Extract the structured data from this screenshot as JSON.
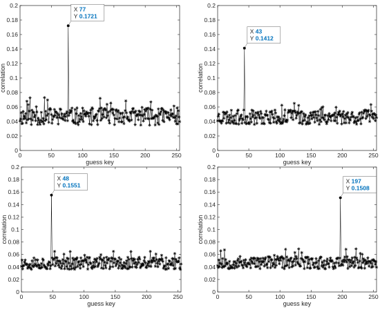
{
  "chart_data": [
    {
      "type": "line",
      "xlabel": "guess key",
      "ylabel": "correlation",
      "xlim": [
        0,
        255
      ],
      "ylim": [
        0,
        0.2
      ],
      "xticks": [
        0,
        50,
        100,
        150,
        200,
        250
      ],
      "yticks": [
        0,
        0.02,
        0.04,
        0.06,
        0.08,
        0.1,
        0.12,
        0.14,
        0.16,
        0.18,
        0.2
      ],
      "series": [
        {
          "marker": "asterisk",
          "color": "#000000",
          "noise": {
            "baseline": 0.047,
            "amplitude": 0.012,
            "min": 0.034,
            "max": 0.081,
            "seed": 11
          },
          "peak": {
            "x": 77,
            "y": 0.1721
          }
        }
      ],
      "datatip": {
        "x_label": "X",
        "y_label": "Y",
        "x_value": "77",
        "y_value": "0.1721",
        "anchor": "right"
      }
    },
    {
      "type": "line",
      "xlabel": "guess key",
      "ylabel": "correlation",
      "xlim": [
        0,
        255
      ],
      "ylim": [
        0,
        0.2
      ],
      "xticks": [
        0,
        50,
        100,
        150,
        200,
        250
      ],
      "yticks": [
        0,
        0.02,
        0.04,
        0.06,
        0.08,
        0.1,
        0.12,
        0.14,
        0.16,
        0.18,
        0.2
      ],
      "series": [
        {
          "marker": "asterisk",
          "color": "#000000",
          "noise": {
            "baseline": 0.046,
            "amplitude": 0.01,
            "min": 0.03,
            "max": 0.07,
            "seed": 23
          },
          "peak": {
            "x": 43,
            "y": 0.1412
          }
        }
      ],
      "datatip": {
        "x_label": "X",
        "y_label": "Y",
        "x_value": "43",
        "y_value": "0.1412",
        "anchor": "right"
      }
    },
    {
      "type": "line",
      "xlabel": "guess key",
      "ylabel": "correlation",
      "xlim": [
        0,
        255
      ],
      "ylim": [
        0,
        0.2
      ],
      "xticks": [
        0,
        50,
        100,
        150,
        200,
        250
      ],
      "yticks": [
        0,
        0.02,
        0.04,
        0.06,
        0.08,
        0.1,
        0.12,
        0.14,
        0.16,
        0.18,
        0.2
      ],
      "series": [
        {
          "marker": "asterisk",
          "color": "#000000",
          "noise": {
            "baseline": 0.046,
            "amplitude": 0.01,
            "min": 0.033,
            "max": 0.065,
            "seed": 37
          },
          "peak": {
            "x": 48,
            "y": 0.1551
          }
        }
      ],
      "datatip": {
        "x_label": "X",
        "y_label": "Y",
        "x_value": "48",
        "y_value": "0.1551",
        "anchor": "right"
      }
    },
    {
      "type": "line",
      "xlabel": "guess key",
      "ylabel": "correlation",
      "xlim": [
        0,
        255
      ],
      "ylim": [
        0,
        0.2
      ],
      "xticks": [
        0,
        50,
        100,
        150,
        200,
        250
      ],
      "yticks": [
        0,
        0.02,
        0.04,
        0.06,
        0.08,
        0.1,
        0.12,
        0.14,
        0.16,
        0.18,
        0.2
      ],
      "series": [
        {
          "marker": "asterisk",
          "color": "#000000",
          "noise": {
            "baseline": 0.047,
            "amplitude": 0.01,
            "min": 0.033,
            "max": 0.072,
            "seed": 53
          },
          "peak": {
            "x": 197,
            "y": 0.1508
          }
        }
      ],
      "datatip": {
        "x_label": "X",
        "y_label": "Y",
        "x_value": "197",
        "y_value": "0.1508",
        "anchor": "right"
      }
    }
  ]
}
